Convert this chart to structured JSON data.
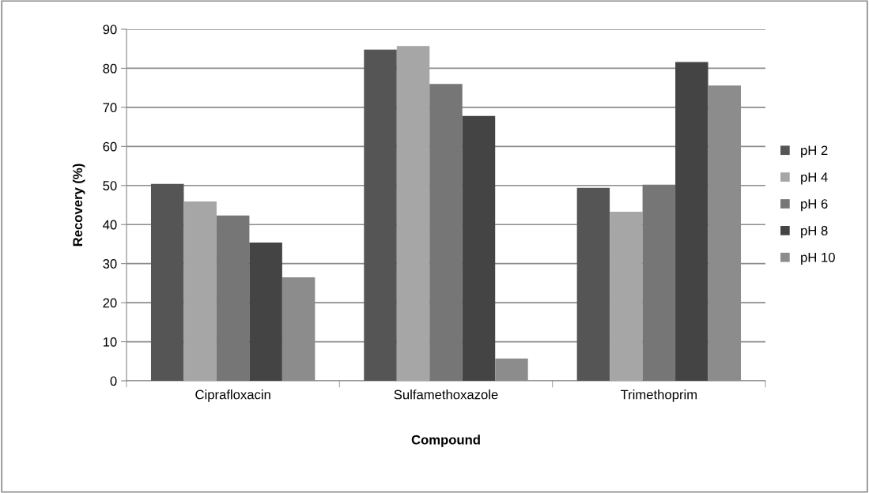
{
  "chart_data": {
    "type": "bar",
    "xlabel": "Compound",
    "ylabel": "Recovery (%)",
    "categories": [
      "Ciprafloxacin",
      "Sulfamethoxazole",
      "Trimethoprim"
    ],
    "series": [
      {
        "name": "pH 2",
        "color": "#555555",
        "values": [
          50.4,
          84.8,
          49.4
        ]
      },
      {
        "name": "pH 4",
        "color": "#a6a6a6",
        "values": [
          45.9,
          85.7,
          43.3
        ]
      },
      {
        "name": "pH 6",
        "color": "#767676",
        "values": [
          42.3,
          76.0,
          50.2
        ]
      },
      {
        "name": "pH 8",
        "color": "#444444",
        "values": [
          35.4,
          67.8,
          81.6
        ]
      },
      {
        "name": "pH 10",
        "color": "#8c8c8c",
        "values": [
          26.5,
          5.7,
          75.6
        ]
      }
    ],
    "ylim": [
      0,
      90
    ],
    "yticks": [
      0,
      10,
      20,
      30,
      40,
      50,
      60,
      70,
      80,
      90
    ],
    "grid": "y",
    "legend": "right"
  }
}
